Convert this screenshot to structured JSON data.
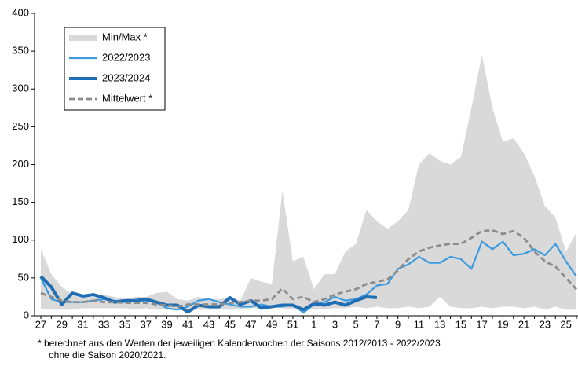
{
  "chart_data": {
    "type": "line",
    "categories": [
      "27",
      null,
      "29",
      null,
      "31",
      null,
      "33",
      null,
      "35",
      null,
      "37",
      null,
      "39",
      null,
      "41",
      null,
      "43",
      null,
      "45",
      null,
      "47",
      null,
      "49",
      null,
      "51",
      null,
      "1",
      null,
      "3",
      null,
      "5",
      null,
      "7",
      null,
      "9",
      null,
      "11",
      null,
      "13",
      null,
      "15",
      null,
      "17",
      null,
      "19",
      null,
      "21",
      null,
      "23",
      null,
      "25",
      null
    ],
    "ylim": [
      0,
      400
    ],
    "yticks": [
      0,
      50,
      100,
      150,
      200,
      250,
      300,
      350,
      400
    ],
    "band": {
      "name": "Min/Max *",
      "color": "#d9d9d9",
      "lower": [
        10,
        8,
        8,
        8,
        10,
        10,
        10,
        10,
        10,
        8,
        10,
        8,
        8,
        8,
        8,
        8,
        8,
        8,
        8,
        8,
        10,
        10,
        12,
        10,
        8,
        8,
        8,
        8,
        10,
        10,
        12,
        10,
        12,
        10,
        10,
        12,
        10,
        12,
        25,
        12,
        10,
        10,
        12,
        10,
        12,
        12,
        10,
        12,
        8,
        12,
        8,
        8
      ],
      "upper": [
        88,
        55,
        38,
        28,
        25,
        25,
        28,
        25,
        22,
        25,
        25,
        30,
        32,
        22,
        20,
        25,
        22,
        22,
        25,
        20,
        50,
        45,
        42,
        165,
        72,
        78,
        35,
        55,
        55,
        85,
        95,
        140,
        125,
        115,
        125,
        140,
        200,
        215,
        205,
        200,
        210,
        275,
        345,
        275,
        230,
        235,
        215,
        185,
        145,
        130,
        85,
        110
      ]
    },
    "series": [
      {
        "name": "2022/2023",
        "color": "#3c9be0",
        "values": [
          50,
          22,
          18,
          18,
          18,
          20,
          22,
          20,
          18,
          20,
          20,
          18,
          10,
          8,
          12,
          20,
          22,
          18,
          15,
          12,
          12,
          15,
          12,
          12,
          15,
          4,
          15,
          18,
          25,
          20,
          22,
          28,
          40,
          42,
          62,
          68,
          78,
          70,
          70,
          78,
          75,
          62,
          98,
          88,
          98,
          80,
          82,
          88,
          80,
          95,
          72,
          52
        ]
      },
      {
        "name": "2023/2024",
        "color": "#1f6db3",
        "values": [
          52,
          38,
          15,
          30,
          26,
          28,
          24,
          18,
          20,
          20,
          22,
          18,
          14,
          14,
          5,
          14,
          12,
          12,
          24,
          15,
          20,
          10,
          12,
          14,
          14,
          8,
          16,
          14,
          18,
          14,
          20,
          25,
          24,
          null,
          null,
          null,
          null,
          null,
          null,
          null,
          null,
          null,
          null,
          null,
          null,
          null,
          null,
          null,
          null,
          null,
          null,
          null
        ]
      },
      {
        "name": "Mittelwert *",
        "color": "#8c8c8c",
        "dashed": true,
        "values": [
          30,
          25,
          20,
          18,
          18,
          20,
          18,
          18,
          17,
          17,
          17,
          15,
          14,
          12,
          15,
          15,
          15,
          15,
          17,
          18,
          20,
          20,
          22,
          36,
          22,
          25,
          18,
          22,
          28,
          32,
          35,
          42,
          45,
          48,
          60,
          75,
          85,
          90,
          93,
          95,
          95,
          103,
          112,
          113,
          108,
          112,
          103,
          85,
          72,
          65,
          50,
          35
        ]
      }
    ],
    "footnote": [
      "* berechnet aus den Werten der jeweiligen Kalenderwochen  der Saisons 2012/2013  - 2022/2023",
      "ohne die Saison 2020/2021."
    ]
  }
}
